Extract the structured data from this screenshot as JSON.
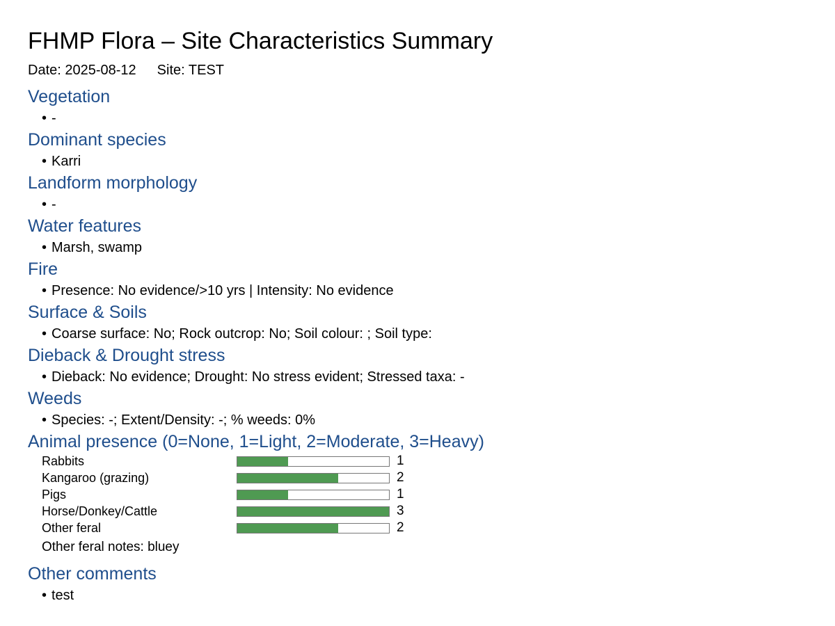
{
  "title": "FHMP Flora – Site Characteristics Summary",
  "meta": {
    "date_label": "Date: 2025-08-12",
    "site_label": "Site: TEST"
  },
  "colors": {
    "heading": "#1f4e8c",
    "bar_fill": "#4f9a52"
  },
  "sections": [
    {
      "heading": "Vegetation",
      "bullet": "-"
    },
    {
      "heading": "Dominant species",
      "bullet": "Karri"
    },
    {
      "heading": "Landform morphology",
      "bullet": "-"
    },
    {
      "heading": "Water features",
      "bullet": "Marsh, swamp"
    },
    {
      "heading": "Fire",
      "bullet": "Presence: No evidence/>10 yrs | Intensity: No evidence"
    },
    {
      "heading": "Surface & Soils",
      "bullet": "Coarse surface: No; Rock outcrop: No; Soil colour: ; Soil type:"
    },
    {
      "heading": "Dieback & Drought stress",
      "bullet": "Dieback: No evidence; Drought: No stress evident; Stressed taxa: -"
    },
    {
      "heading": "Weeds",
      "bullet": "Species: -; Extent/Density: -; % weeds: 0%"
    }
  ],
  "animal_presence": {
    "heading": "Animal presence (0=None, 1=Light, 2=Moderate, 3=Heavy)",
    "max": 3,
    "items": [
      {
        "name": "Rabbits",
        "value": 1,
        "label": "1"
      },
      {
        "name": "Kangaroo (grazing)",
        "value": 2,
        "label": "2"
      },
      {
        "name": "Pigs",
        "value": 1,
        "label": "1"
      },
      {
        "name": "Horse/Donkey/Cattle",
        "value": 3,
        "label": "3"
      },
      {
        "name": "Other feral",
        "value": 2,
        "label": "2"
      }
    ],
    "notes": "Other feral notes: bluey"
  },
  "other_comments": {
    "heading": "Other comments",
    "bullet": "test"
  },
  "bullet_glyph": "•"
}
